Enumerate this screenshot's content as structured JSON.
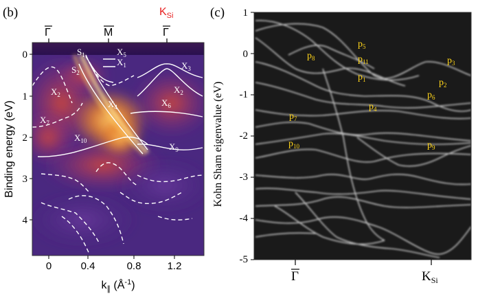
{
  "colors": {
    "arpes_dark": "#2a1858",
    "arpes_mid": "#8a2c84",
    "arpes_hot": "#f08828",
    "arpes_bright": "#ffd070",
    "dft_background": "#1a1a1a",
    "label_yellow": "#ffd51a",
    "ksi_red": "#e82020",
    "overlay_white": "#ffffff"
  },
  "panel_b": {
    "panel_label": "(b)",
    "xlabel_main": "k",
    "xlabel_sub": "∥",
    "xlabel_unit": " (Å",
    "xlabel_exp": "-1",
    "xlabel_close": ")",
    "ylabel": "Binding energy (eV)",
    "x_ticks": [
      "0",
      "0.4",
      "0.8",
      "1.2"
    ],
    "y_ticks": [
      "0",
      "1",
      "2",
      "3",
      "4"
    ],
    "top_points": {
      "gamma": "Γ",
      "m": "M",
      "gamma2": "Γ",
      "ksi_main": "K",
      "ksi_sub": "Si"
    },
    "band_labels": {
      "s1": {
        "main": "S",
        "sub": "1"
      },
      "s2": {
        "main": "S",
        "sub": "2"
      },
      "x5": {
        "main": "X",
        "sub": "5"
      },
      "x1": {
        "main": "X",
        "sub": "1"
      },
      "x3": {
        "main": "X",
        "sub": "3"
      },
      "x2a": {
        "main": "X",
        "sub": "2"
      },
      "x2b": {
        "main": "X",
        "sub": "2"
      },
      "x4": {
        "main": "X",
        "sub": "4"
      },
      "x6": {
        "main": "X",
        "sub": "6"
      },
      "x7": {
        "main": "X",
        "sub": "7"
      },
      "x10": {
        "main": "X",
        "sub": "10"
      },
      "x9": {
        "main": "X",
        "sub": "9"
      }
    }
  },
  "panel_c": {
    "panel_label": "(c)",
    "ylabel": "Kohn Sham eigenvalue (eV)",
    "y_ticks": [
      "1",
      "0",
      "-1",
      "-2",
      "-3",
      "-4",
      "-5"
    ],
    "x_points": {
      "gamma": "Γ",
      "ksi_main": "K",
      "ksi_sub": "Si"
    },
    "p_labels": {
      "p5": {
        "main": "p",
        "sub": "5"
      },
      "p11": {
        "main": "p",
        "sub": "11"
      },
      "p8": {
        "main": "p",
        "sub": "8"
      },
      "p3": {
        "main": "p",
        "sub": "3"
      },
      "p1": {
        "main": "p",
        "sub": "1"
      },
      "p2": {
        "main": "p",
        "sub": "2"
      },
      "p6": {
        "main": "p",
        "sub": "6"
      },
      "p4": {
        "main": "p",
        "sub": "4"
      },
      "p7": {
        "main": "p",
        "sub": "7"
      },
      "p10": {
        "main": "p",
        "sub": "10"
      },
      "p9": {
        "main": "p",
        "sub": "9"
      }
    }
  }
}
